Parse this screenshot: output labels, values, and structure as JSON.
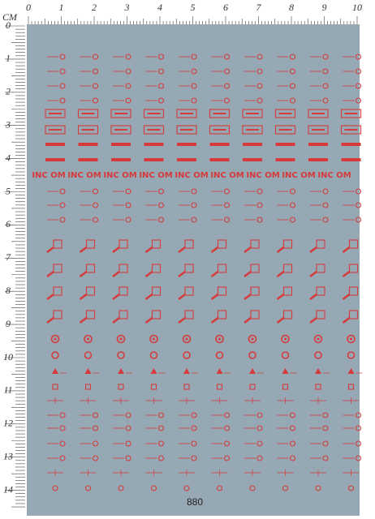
{
  "ruler_top": {
    "labels": [
      "0",
      "1",
      "2",
      "3",
      "4",
      "5",
      "6",
      "7",
      "8",
      "9",
      "10"
    ]
  },
  "ruler_left": {
    "unit": "CM",
    "labels": [
      "0",
      "1",
      "2",
      "3",
      "4",
      "5",
      "6",
      "7",
      "8",
      "9",
      "10",
      "11",
      "12",
      "13",
      "14"
    ]
  },
  "logo_text": "INC OM",
  "sheet_number": "880"
}
